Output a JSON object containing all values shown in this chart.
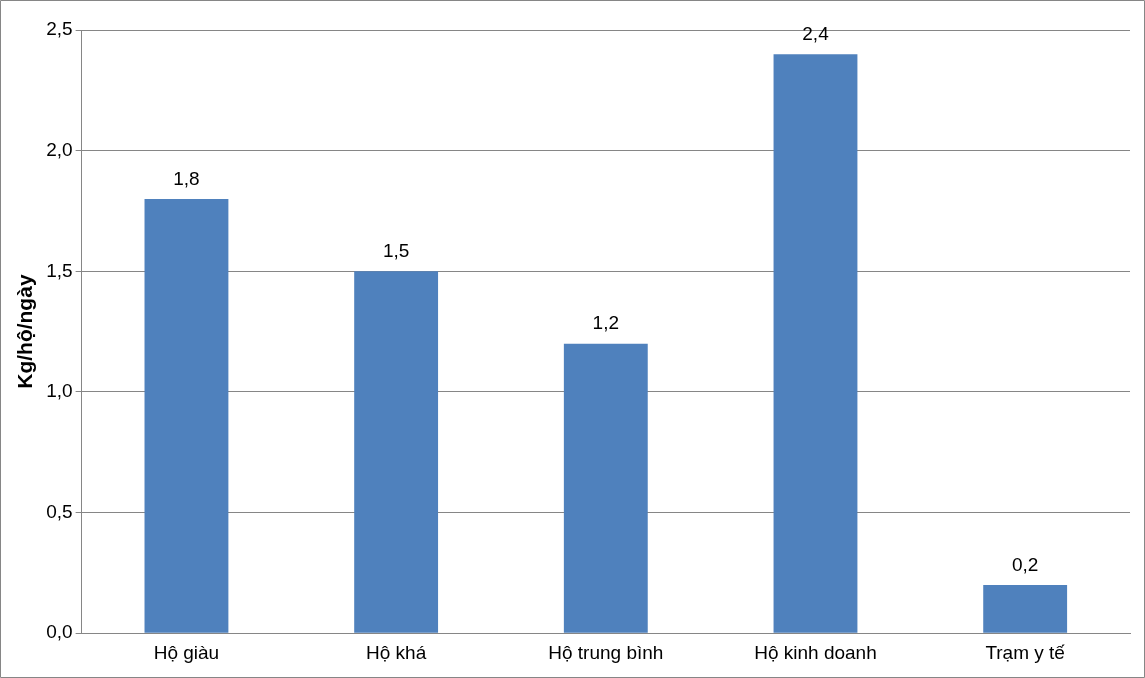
{
  "chart_data": {
    "type": "bar",
    "ylabel": "Kg/hộ/ngày",
    "categories": [
      "Hộ giàu",
      "Hộ khá",
      "Hộ trung bình",
      "Hộ kinh doanh",
      "Trạm y tế"
    ],
    "values": [
      1.8,
      1.5,
      1.2,
      2.4,
      0.2
    ],
    "value_labels": [
      "1,8",
      "1,5",
      "1,2",
      "2,4",
      "0,2"
    ],
    "color": "#4f81bd",
    "ylim": [
      0,
      2.5
    ],
    "yticks": [
      {
        "value": 0,
        "label": "0,0"
      },
      {
        "value": 0.5,
        "label": "0,5"
      },
      {
        "value": 1,
        "label": "1,0"
      },
      {
        "value": 1.5,
        "label": "1,5"
      },
      {
        "value": 2,
        "label": "2,0"
      },
      {
        "value": 2.5,
        "label": "2,5"
      }
    ],
    "grid": "y"
  }
}
